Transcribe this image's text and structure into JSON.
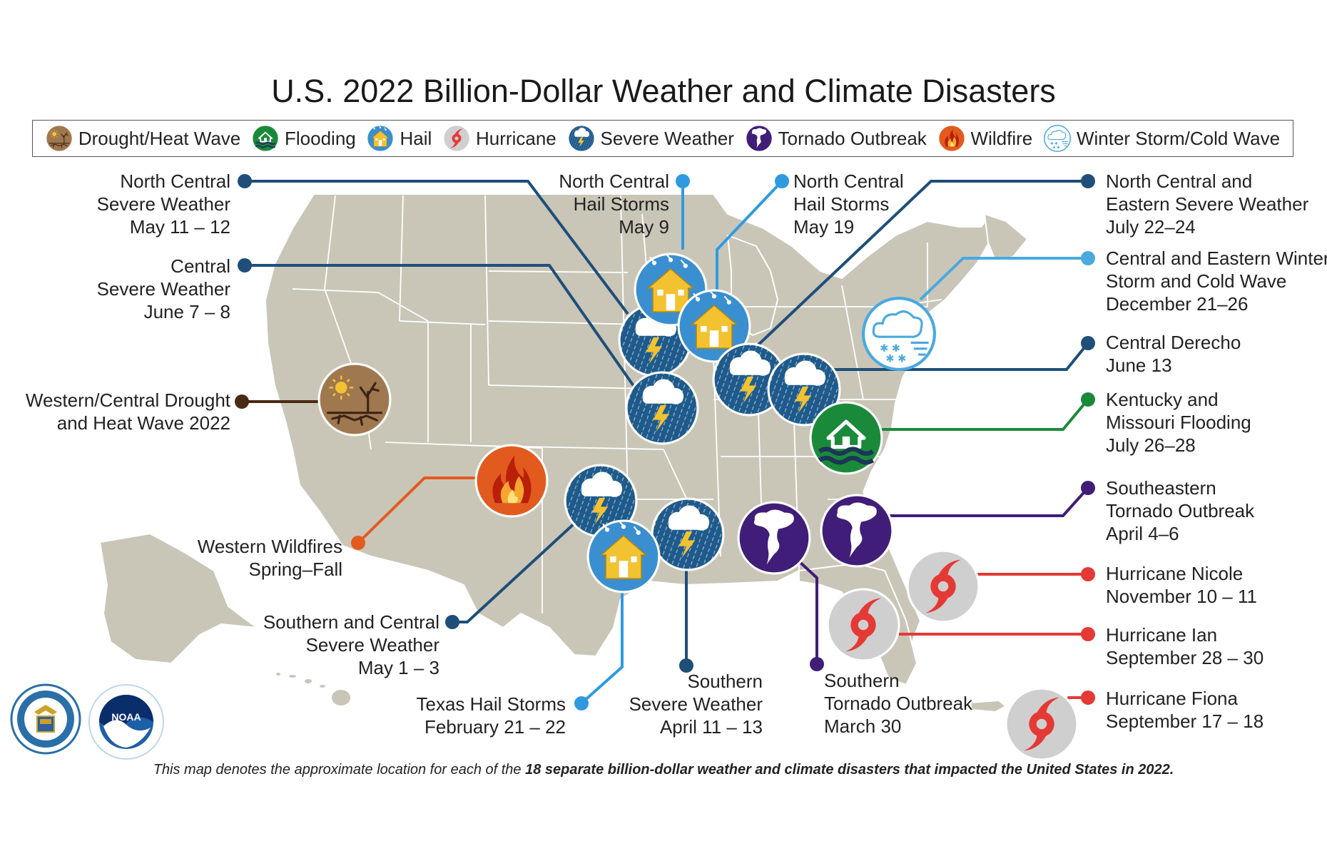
{
  "title": "U.S. 2022 Billion-Dollar Weather and Climate Disasters",
  "legend": [
    {
      "label": "Drought/Heat Wave",
      "icon": "drought-icon",
      "color": "#8b6a4a"
    },
    {
      "label": "Flooding",
      "icon": "flooding-icon",
      "color": "#1a8a3a"
    },
    {
      "label": "Hail",
      "icon": "hail-icon",
      "color": "#3a8fd0"
    },
    {
      "label": "Hurricane",
      "icon": "hurricane-icon",
      "color": "#e03a3a"
    },
    {
      "label": "Severe Weather",
      "icon": "severe-weather-icon",
      "color": "#1f5a8a"
    },
    {
      "label": "Tornado Outbreak",
      "icon": "tornado-icon",
      "color": "#3f1d78"
    },
    {
      "label": "Wildfire",
      "icon": "wildfire-icon",
      "color": "#e35a1f"
    },
    {
      "label": "Winter Storm/Cold Wave",
      "icon": "winter-storm-icon",
      "color": "#4aa9df"
    }
  ],
  "events": {
    "nc_severe_may": [
      "North Central",
      "Severe Weather",
      "May 11 – 12"
    ],
    "central_severe_june": [
      "Central",
      "Severe Weather",
      "June 7 – 8"
    ],
    "drought": [
      "Western/Central Drought",
      "and Heat Wave 2022"
    ],
    "wildfires": [
      "Western Wildfires",
      "Spring–Fall"
    ],
    "southern_central_severe": [
      "Southern and Central",
      "Severe Weather",
      "May 1 – 3"
    ],
    "texas_hail": [
      "Texas Hail Storms",
      "February 21 – 22"
    ],
    "southern_severe": [
      "Southern",
      "Severe Weather",
      "April 11 – 13"
    ],
    "southern_tornado": [
      "Southern",
      "Tornado Outbreak",
      "March 30"
    ],
    "nc_hail_may9": [
      "North Central",
      "Hail Storms",
      "May 9"
    ],
    "nc_hail_may19": [
      "North Central",
      "Hail Storms",
      "May 19"
    ],
    "nce_severe_july": [
      "North Central and",
      "Eastern Severe Weather",
      "July 22–24"
    ],
    "winter_storm": [
      "Central and Eastern Winter",
      "Storm and Cold Wave",
      "December 21–26"
    ],
    "derecho": [
      "Central Derecho",
      "June 13"
    ],
    "ky_mo_flood": [
      "Kentucky and",
      "Missouri Flooding",
      "July 26–28"
    ],
    "se_tornado": [
      "Southeastern",
      "Tornado Outbreak",
      "April 4–6"
    ],
    "nicole": [
      "Hurricane Nicole",
      "November 10 – 11"
    ],
    "ian": [
      "Hurricane Ian",
      "September 28 – 30"
    ],
    "fiona": [
      "Hurricane Fiona",
      "September 17 – 18"
    ]
  },
  "footer": {
    "prefix": "This map denotes the approximate location for each of the ",
    "bold": "18 separate billion-dollar weather and climate disasters that impacted the United States in 2022."
  },
  "seals": {
    "commerce": "DEPARTMENT OF COMMERCE · UNITED STATES OF AMERICA",
    "noaa": "NOAA"
  },
  "colors": {
    "land": "#c9c6b8",
    "state_border": "#ffffff",
    "severe_line": "#1f4e79",
    "hail_line": "#2f9ae0",
    "tornado_line": "#3f1d78",
    "hurricane_line": "#e53935",
    "flood_line": "#1a8a3a",
    "winter_line": "#4aa9df",
    "wildfire_line": "#e35a1f",
    "drought_line": "#4a2a15"
  }
}
